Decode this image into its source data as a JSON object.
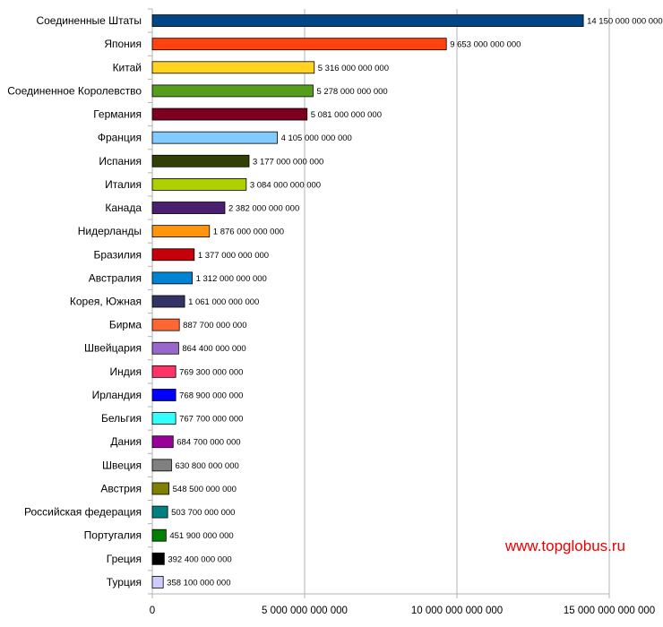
{
  "chart_data": {
    "type": "bar",
    "orientation": "horizontal",
    "categories": [
      "Соединенные Штаты",
      "Япония",
      "Китай",
      "Соединенное Королевство",
      "Германия",
      "Франция",
      "Испания",
      "Италия",
      "Канада",
      "Нидерланды",
      "Бразилия",
      "Австралия",
      "Корея, Южная",
      "Бирма",
      "Швейцария",
      "Индия",
      "Ирландия",
      "Бельгия",
      "Дания",
      "Швеция",
      "Австрия",
      "Российская федерация",
      "Португалия",
      "Греция",
      "Турция"
    ],
    "values": [
      14150000000000,
      9653000000000,
      5316000000000,
      5278000000000,
      5081000000000,
      4105000000000,
      3177000000000,
      3084000000000,
      2382000000000,
      1876000000000,
      1377000000000,
      1312000000000,
      1061000000000,
      887700000000,
      864400000000,
      769300000000,
      768900000000,
      767700000000,
      684700000000,
      630800000000,
      548500000000,
      503700000000,
      451900000000,
      392400000000,
      358100000000
    ],
    "value_labels": [
      "14 150 000 000 000",
      "9 653 000 000 000",
      "5 316 000 000 000",
      "5 278 000 000 000",
      "5 081 000 000 000",
      "4 105 000 000 000",
      "3 177 000 000 000",
      "3 084 000 000 000",
      "2 382 000 000 000",
      "1 876 000 000 000",
      "1 377 000 000 000",
      "1 312 000 000 000",
      "1 061 000 000 000",
      "887 700 000 000",
      "864 400 000 000",
      "769 300 000 000",
      "768 900 000 000",
      "767 700 000 000",
      "684 700 000 000",
      "630 800 000 000",
      "548 500 000 000",
      "503 700 000 000",
      "451 900 000 000",
      "392 400 000 000",
      "358 100 000 000"
    ],
    "colors": [
      "#004586",
      "#ff420e",
      "#ffd320",
      "#579d1c",
      "#7e0021",
      "#83caff",
      "#314004",
      "#aecf00",
      "#4b1f6f",
      "#ff950e",
      "#c5000b",
      "#0084d1",
      "#333366",
      "#ff6633",
      "#9966cc",
      "#ff3366",
      "#0000ff",
      "#33ffff",
      "#990099",
      "#808080",
      "#808000",
      "#008080",
      "#008000",
      "#000000",
      "#ccccff"
    ],
    "xlim": [
      0,
      15000000000000
    ],
    "x_ticks": [
      0,
      5000000000000,
      10000000000000,
      15000000000000
    ],
    "x_tick_labels": [
      "0",
      "5 000 000 000 000",
      "10 000 000 000 000",
      "15 000 000 000 000"
    ],
    "grid": true,
    "title": "",
    "xlabel": "",
    "ylabel": ""
  },
  "watermark": "www.topglobus.ru"
}
